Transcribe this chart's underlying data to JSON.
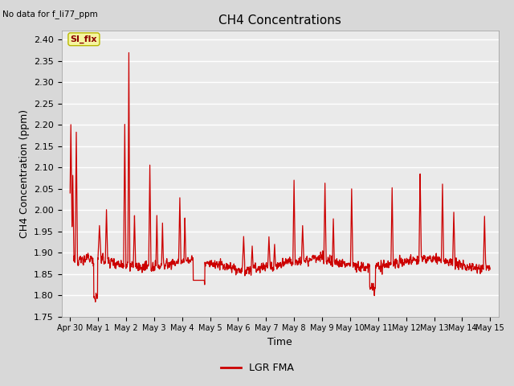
{
  "title": "CH4 Concentrations",
  "ylabel": "CH4 Concentration (ppm)",
  "xlabel": "Time",
  "top_left_text": "No data for f_li77_ppm",
  "legend_label": "LGR FMA",
  "legend_color": "#cc0000",
  "line_color": "#cc0000",
  "ylim": [
    1.75,
    2.42
  ],
  "yticks": [
    1.75,
    1.8,
    1.85,
    1.9,
    1.95,
    2.0,
    2.05,
    2.1,
    2.15,
    2.2,
    2.25,
    2.3,
    2.35,
    2.4
  ],
  "xtick_labels": [
    "Apr 30",
    "May 1",
    "May 2",
    "May 3",
    "May 4",
    "May 5",
    "May 6",
    "May 7",
    "May 8",
    "May 9",
    "May 10",
    "May 11",
    "May 12",
    "May 13",
    "May 14",
    "May 15"
  ],
  "fig_bg_color": "#d8d8d8",
  "plot_bg_color": "#eaeaea",
  "grid_color": "#ffffff",
  "annotation_text": "SI_flx",
  "line_width": 0.9,
  "title_fontsize": 11,
  "label_fontsize": 9,
  "tick_fontsize": 8
}
